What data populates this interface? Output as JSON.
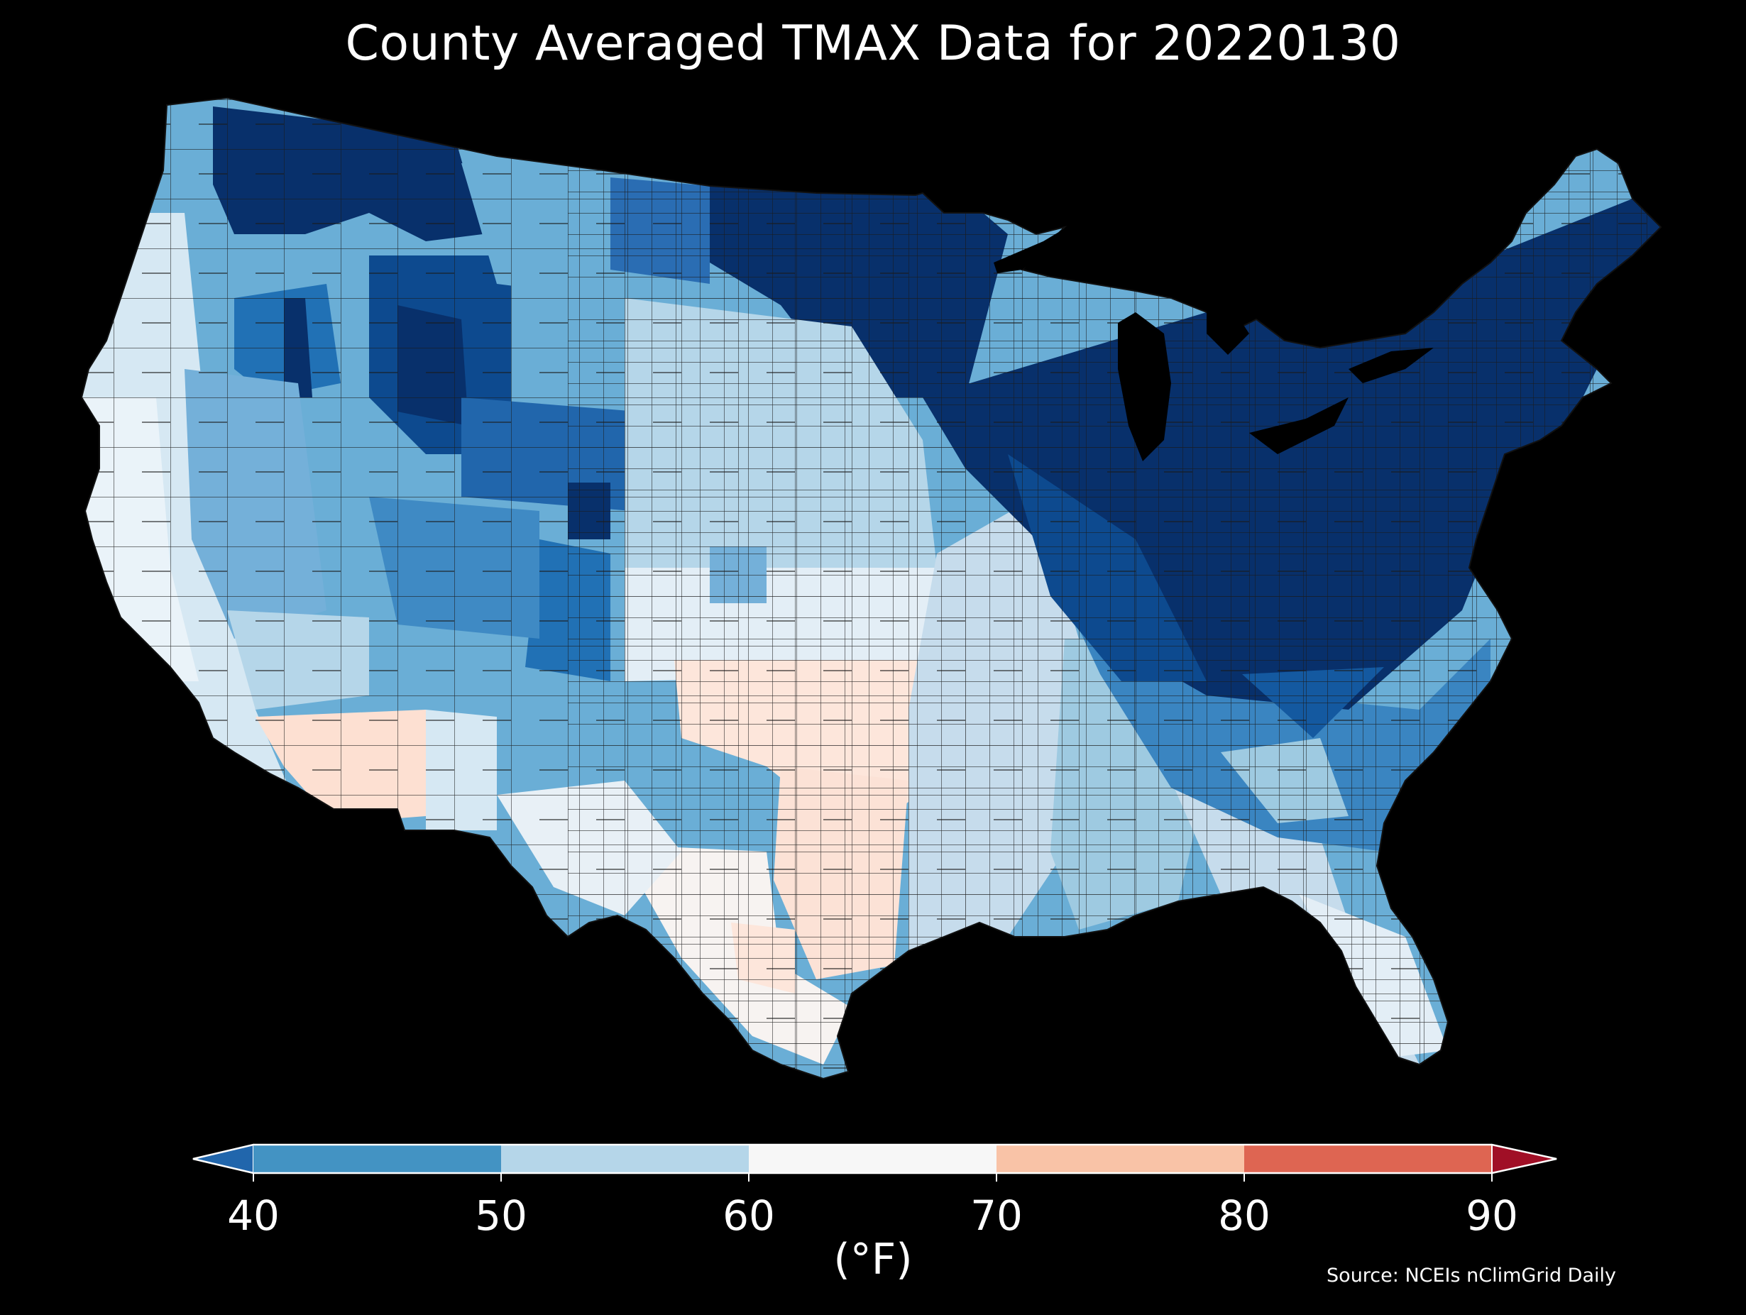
{
  "title": "County Averaged TMAX Data for 20220130",
  "map": {
    "region": "contiguous-united-states",
    "background_color": "#000000",
    "county_border_color": "#1a1a1a"
  },
  "colorbar": {
    "ticks": [
      "40",
      "50",
      "60",
      "70",
      "80",
      "90"
    ],
    "units": "(°F)",
    "bins": [
      {
        "range": "<40",
        "color": "#2166ac"
      },
      {
        "range": "40-50",
        "color": "#4393c3"
      },
      {
        "range": "50-60",
        "color": "#b5d6e9"
      },
      {
        "range": "60-70",
        "color": "#f7f7f7"
      },
      {
        "range": "70-80",
        "color": "#f9c3a7"
      },
      {
        "range": "80-90",
        "color": "#de6552"
      },
      {
        "range": ">90",
        "color": "#a00f26"
      }
    ],
    "dark_blue": "#08306b",
    "mid_blue": "#2a6db3",
    "light_peach": "#fde0d2"
  },
  "source": "Source: NCEIs nClimGrid Daily"
}
